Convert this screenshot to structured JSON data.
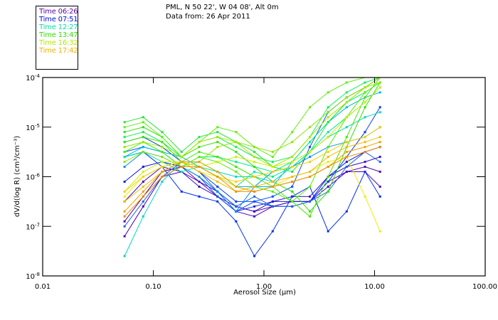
{
  "header": {
    "title_line1": "PML, N 50 22', W 04 08', Alt 0m",
    "title_line2": "Data from: 26 Apr 2011"
  },
  "legend": [
    {
      "label": "Time 06:26",
      "color": "#5a00a8"
    },
    {
      "label": "Time 07:51",
      "color": "#0010e0"
    },
    {
      "label": "Time 12:27",
      "color": "#00e0a0"
    },
    {
      "label": "Time 13:47",
      "color": "#30e000"
    },
    {
      "label": "Time 16:32",
      "color": "#b0e800"
    },
    {
      "label": "Time 17:42",
      "color": "#f0b000"
    }
  ],
  "chart_data": {
    "type": "line",
    "title": "PML, N 50 22', W 04 08', Alt 0m",
    "subtitle": "Data from: 26 Apr 2011",
    "xlabel": "Aerosol Size (µm)",
    "ylabel": "dV/d(log R) (cm³/cm⁻³)",
    "xscale": "log",
    "yscale": "log",
    "xlim": [
      0.01,
      100
    ],
    "ylim": [
      1e-08,
      0.0001
    ],
    "xticks": [
      "0.01",
      "0.10",
      "1.00",
      "10.00",
      "100.00"
    ],
    "yticks": [
      {
        "value": 0.0001,
        "base": "10",
        "exp": "-4"
      },
      {
        "value": 1e-05,
        "base": "10",
        "exp": "-5"
      },
      {
        "value": 1e-06,
        "base": "10",
        "exp": "-6"
      },
      {
        "value": 1e-07,
        "base": "10",
        "exp": "-7"
      },
      {
        "value": 1e-08,
        "base": "10",
        "exp": "-8"
      }
    ],
    "x": [
      0.055,
      0.081,
      0.12,
      0.18,
      0.26,
      0.38,
      0.56,
      0.82,
      1.2,
      1.8,
      2.6,
      3.8,
      5.6,
      8.2,
      11.2
    ],
    "series_log10": [
      {
        "name": "Time 06:26",
        "color": "#5a00a8",
        "y": [
          -6.9,
          -6.4,
          -5.9,
          -5.8,
          -6.1,
          -6.3,
          -6.6,
          -6.7,
          -6.6,
          -6.5,
          -6.5,
          -6.1,
          -5.9,
          -5.8,
          -5.9
        ]
      },
      {
        "name": "Time 06:26",
        "color": "#4a08b8",
        "y": [
          -7.2,
          -6.6,
          -6.0,
          -5.9,
          -6.1,
          -6.4,
          -6.7,
          -6.8,
          -6.6,
          -6.5,
          -6.5,
          -6.2,
          -5.9,
          -5.9,
          -6.2
        ]
      },
      {
        "name": "Time 06:26",
        "color": "#3a10c8",
        "y": [
          -6.5,
          -6.1,
          -5.8,
          -5.9,
          -6.2,
          -6.4,
          -6.6,
          -6.7,
          -6.5,
          -6.4,
          -6.4,
          -6.0,
          -5.8,
          -5.7,
          -5.6
        ]
      },
      {
        "name": "Time 07:51",
        "color": "#1018e0",
        "y": [
          -6.1,
          -5.8,
          -5.7,
          -5.8,
          -6.0,
          -6.3,
          -6.7,
          -6.6,
          -6.5,
          -6.5,
          -6.5,
          -6.0,
          -5.7,
          -5.5,
          -5.4
        ]
      },
      {
        "name": "Time 07:51",
        "color": "#0030f0",
        "y": [
          -5.6,
          -5.5,
          -5.8,
          -6.3,
          -6.4,
          -6.5,
          -6.9,
          -7.6,
          -7.1,
          -6.4,
          -6.2,
          -7.1,
          -6.7,
          -5.9,
          -6.4
        ]
      },
      {
        "name": "Time 07:51",
        "color": "#0040f0",
        "y": [
          -5.3,
          -5.2,
          -5.4,
          -5.7,
          -5.9,
          -6.2,
          -6.5,
          -6.5,
          -6.6,
          -6.6,
          -6.5,
          -6.1,
          -5.6,
          -5.1,
          -4.6
        ]
      },
      {
        "name": "Time 07:51",
        "color": "#1050f8",
        "y": [
          -5.5,
          -5.4,
          -5.5,
          -5.8,
          -6.0,
          -6.4,
          -6.7,
          -6.5,
          -6.4,
          -6.2,
          -5.4,
          -4.7,
          -4.4,
          -4.2,
          -4.0
        ]
      },
      {
        "name": "Time 07:51",
        "color": "#2060f0",
        "y": [
          -7.0,
          -6.5,
          -6.0,
          -5.7,
          -5.9,
          -6.3,
          -6.6,
          -6.4,
          -6.6,
          -6.6,
          -6.5,
          -6.3,
          -5.8,
          -5.5,
          -5.7
        ]
      },
      {
        "name": "Time 12:27",
        "color": "#0090f0",
        "y": [
          -5.8,
          -5.5,
          -5.6,
          -5.8,
          -6.0,
          -6.3,
          -6.7,
          -6.2,
          -5.9,
          -5.8,
          -5.6,
          -5.4,
          -5.3,
          -5.2,
          -5.0
        ]
      },
      {
        "name": "Time 12:27",
        "color": "#00b8e0",
        "y": [
          -5.6,
          -5.4,
          -5.5,
          -5.6,
          -5.8,
          -6.0,
          -6.2,
          -6.2,
          -6.2,
          -5.7,
          -5.3,
          -4.9,
          -4.6,
          -4.4,
          -4.3
        ]
      },
      {
        "name": "Time 12:27",
        "color": "#00d8c0",
        "y": [
          -7.6,
          -6.8,
          -6.1,
          -5.7,
          -5.7,
          -5.9,
          -6.0,
          -6.0,
          -6.1,
          -5.8,
          -5.5,
          -5.2,
          -5.0,
          -4.8,
          -4.7
        ]
      },
      {
        "name": "Time 12:27",
        "color": "#00e8a0",
        "y": [
          -5.6,
          -5.5,
          -5.7,
          -5.9,
          -5.8,
          -5.9,
          -6.2,
          -5.9,
          -6.0,
          -5.8,
          -5.5,
          -5.1,
          -4.8,
          -4.5,
          -4.2
        ]
      },
      {
        "name": "Time 12:27",
        "color": "#00f080",
        "y": [
          -5.4,
          -5.3,
          -5.5,
          -5.8,
          -5.6,
          -5.6,
          -5.7,
          -5.8,
          -5.9,
          -5.7,
          -5.3,
          -4.9,
          -4.5,
          -4.3,
          -4.1
        ]
      },
      {
        "name": "Time 13:47",
        "color": "#10f050",
        "y": [
          -5.2,
          -5.1,
          -5.3,
          -5.6,
          -5.3,
          -5.2,
          -5.4,
          -5.6,
          -5.7,
          -5.6,
          -5.2,
          -4.6,
          -4.3,
          -4.1,
          -4.0
        ]
      },
      {
        "name": "Time 13:47",
        "color": "#20e830",
        "y": [
          -4.9,
          -4.8,
          -5.1,
          -5.5,
          -5.2,
          -5.1,
          -5.3,
          -5.5,
          -5.8,
          -5.9,
          -5.5,
          -4.9,
          -4.5,
          -4.2,
          -4.0
        ]
      },
      {
        "name": "Time 13:47",
        "color": "#30e000",
        "y": [
          -5.1,
          -5.0,
          -5.2,
          -5.6,
          -5.4,
          -5.3,
          -5.5,
          -5.8,
          -6.1,
          -6.3,
          -6.7,
          -6.3,
          -5.4,
          -4.6,
          -4.1
        ]
      },
      {
        "name": "Time 13:47",
        "color": "#40e800",
        "y": [
          -5.3,
          -5.2,
          -5.3,
          -5.7,
          -5.5,
          -5.6,
          -5.8,
          -6.0,
          -6.2,
          -6.5,
          -6.8,
          -6.0,
          -5.2,
          -4.4,
          -4.0
        ]
      },
      {
        "name": "Time 13:47",
        "color": "#50f000",
        "y": [
          -5.5,
          -5.3,
          -5.5,
          -5.8,
          -5.6,
          -5.7,
          -5.9,
          -6.2,
          -6.3,
          -6.5,
          -6.2,
          -5.4,
          -4.8,
          -4.3,
          -4.1
        ]
      },
      {
        "name": "Time 13:47",
        "color": "#60f010",
        "y": [
          -5.0,
          -4.9,
          -5.2,
          -5.6,
          -5.3,
          -5.0,
          -5.1,
          -5.4,
          -5.6,
          -5.1,
          -4.6,
          -4.3,
          -4.1,
          -4.0,
          -4.0
        ]
      },
      {
        "name": "Time 16:32",
        "color": "#88e800",
        "y": [
          -5.7,
          -5.5,
          -5.6,
          -5.8,
          -5.7,
          -5.4,
          -5.3,
          -5.4,
          -5.5,
          -5.3,
          -5.0,
          -4.7,
          -4.4,
          -4.2,
          -4.1
        ]
      },
      {
        "name": "Time 16:32",
        "color": "#a8e800",
        "y": [
          -5.4,
          -5.3,
          -5.4,
          -5.6,
          -5.3,
          -5.2,
          -5.3,
          -5.6,
          -5.8,
          -5.6,
          -5.2,
          -4.8,
          -4.5,
          -4.2,
          -4.0
        ]
      },
      {
        "name": "Time 16:32",
        "color": "#c8f000",
        "y": [
          -6.3,
          -5.9,
          -5.7,
          -5.7,
          -5.8,
          -5.7,
          -5.6,
          -5.7,
          -5.8,
          -5.7,
          -5.5,
          -5.2,
          -4.8,
          -4.5,
          -4.2
        ]
      },
      {
        "name": "Time 16:32",
        "color": "#e8f000",
        "y": [
          -6.4,
          -6.0,
          -5.8,
          -5.7,
          -5.9,
          -6.0,
          -6.2,
          -6.3,
          -6.2,
          -6.0,
          -5.9,
          -5.7,
          -5.6,
          -6.4,
          -7.1
        ]
      },
      {
        "name": "Time 17:42",
        "color": "#f8d000",
        "y": [
          -6.3,
          -6.0,
          -5.8,
          -5.7,
          -5.8,
          -6.0,
          -6.1,
          -6.0,
          -5.9,
          -5.8,
          -5.7,
          -5.5,
          -5.3,
          -5.2,
          -5.0
        ]
      },
      {
        "name": "Time 17:42",
        "color": "#f8b800",
        "y": [
          -6.5,
          -6.2,
          -5.9,
          -5.7,
          -5.9,
          -6.1,
          -6.3,
          -6.2,
          -6.1,
          -6.0,
          -5.9,
          -5.6,
          -5.4,
          -5.3,
          -5.2
        ]
      },
      {
        "name": "Time 17:42",
        "color": "#f0a000",
        "y": [
          -6.7,
          -6.3,
          -5.9,
          -5.7,
          -5.7,
          -5.9,
          -6.2,
          -6.3,
          -6.2,
          -6.1,
          -6.0,
          -5.8,
          -5.5,
          -5.4,
          -5.3
        ]
      },
      {
        "name": "Time 17:42",
        "color": "#f09000",
        "y": [
          -6.8,
          -6.4,
          -6.0,
          -5.8,
          -5.8,
          -6.0,
          -6.3,
          -6.3,
          -6.2,
          -6.1,
          -6.0,
          -5.8,
          -5.6,
          -5.5,
          -5.4
        ]
      }
    ]
  }
}
